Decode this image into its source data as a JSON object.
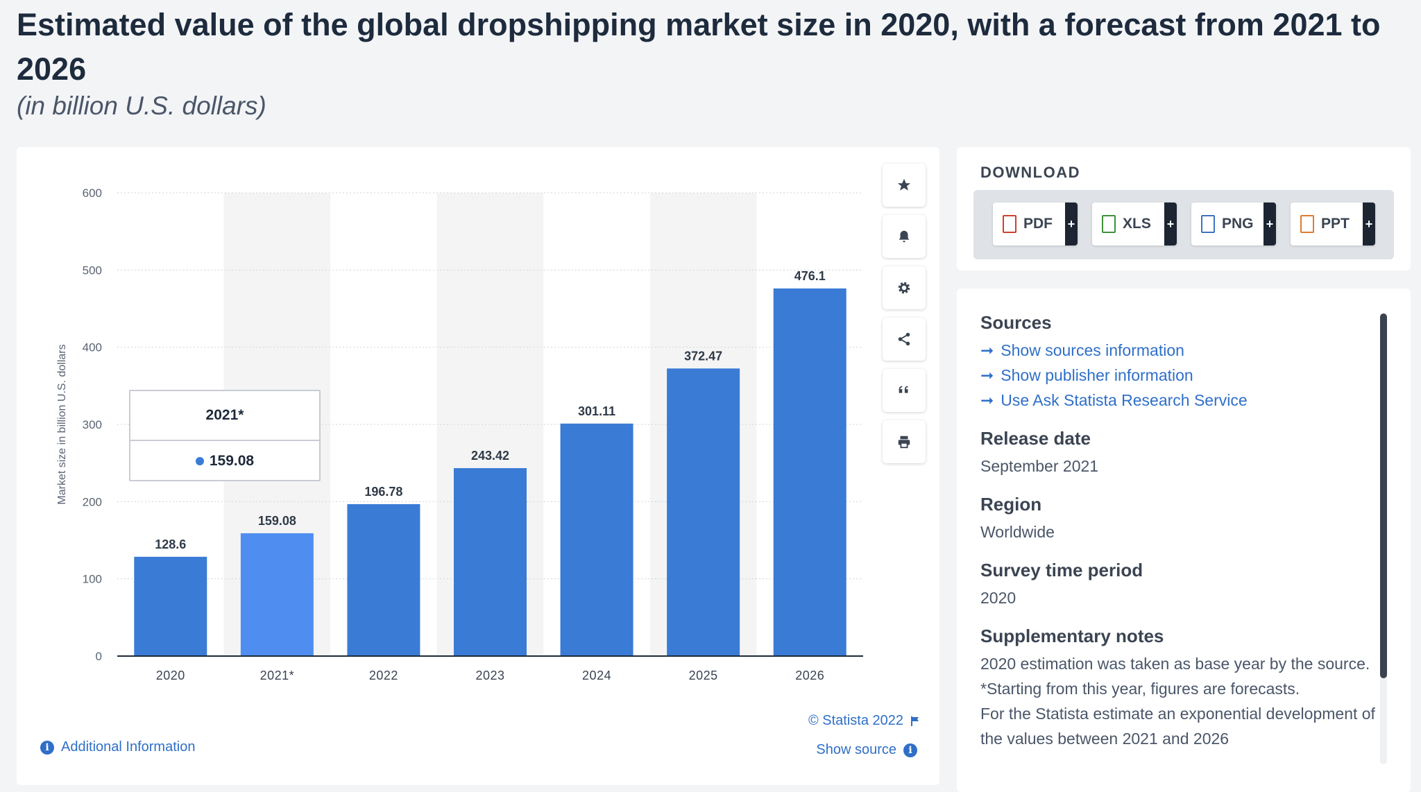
{
  "header": {
    "title": "Estimated value of the global dropshipping market size in 2020, with a forecast from 2021 to 2026",
    "subtitle": "(in billion U.S. dollars)"
  },
  "chart_data": {
    "type": "bar",
    "categories": [
      "2020",
      "2021*",
      "2022",
      "2023",
      "2024",
      "2025",
      "2026"
    ],
    "values": [
      128.6,
      159.08,
      196.78,
      243.42,
      301.11,
      372.47,
      476.1
    ],
    "value_labels": [
      "128.6",
      "159.08",
      "196.78",
      "243.42",
      "301.11",
      "372.47",
      "476.1"
    ],
    "ylabel": "Market size in billion U.S. dollars",
    "ylim": [
      0,
      600
    ],
    "yticks": [
      0,
      100,
      200,
      300,
      400,
      500,
      600
    ],
    "grid": true,
    "highlighted_index": 1,
    "colors": {
      "bar": "#3a7bd5",
      "highlight": "#4f8ef0",
      "band": "#f4f4f4",
      "grid": "#cfd3d8",
      "axis": "#1e2a3a"
    }
  },
  "tooltip": {
    "category": "2021*",
    "value": "159.08"
  },
  "toolbar": {
    "buttons": [
      "star-icon",
      "bell-icon",
      "gear-icon",
      "share-icon",
      "quote-icon",
      "print-icon"
    ]
  },
  "chart_footer": {
    "credit": "© Statista 2022",
    "show_source": "Show source",
    "additional_info": "Additional Information"
  },
  "download": {
    "title": "DOWNLOAD",
    "formats": [
      {
        "label": "PDF",
        "color": "#d0402b"
      },
      {
        "label": "XLS",
        "color": "#3f8f3a"
      },
      {
        "label": "PNG",
        "color": "#3f72c2"
      },
      {
        "label": "PPT",
        "color": "#e07a2f"
      }
    ],
    "plus": "+"
  },
  "info": {
    "sources_title": "Sources",
    "links": [
      "Show sources information",
      "Show publisher information",
      "Use Ask Statista Research Service"
    ],
    "release_title": "Release date",
    "release_value": "September 2021",
    "region_title": "Region",
    "region_value": "Worldwide",
    "survey_title": "Survey time period",
    "survey_value": "2020",
    "notes_title": "Supplementary notes",
    "notes_lines": [
      "2020 estimation was taken as base year by the source.",
      "*Starting from this year, figures are forecasts.",
      "For the Statista estimate an exponential development of the values between 2021 and 2026"
    ]
  }
}
